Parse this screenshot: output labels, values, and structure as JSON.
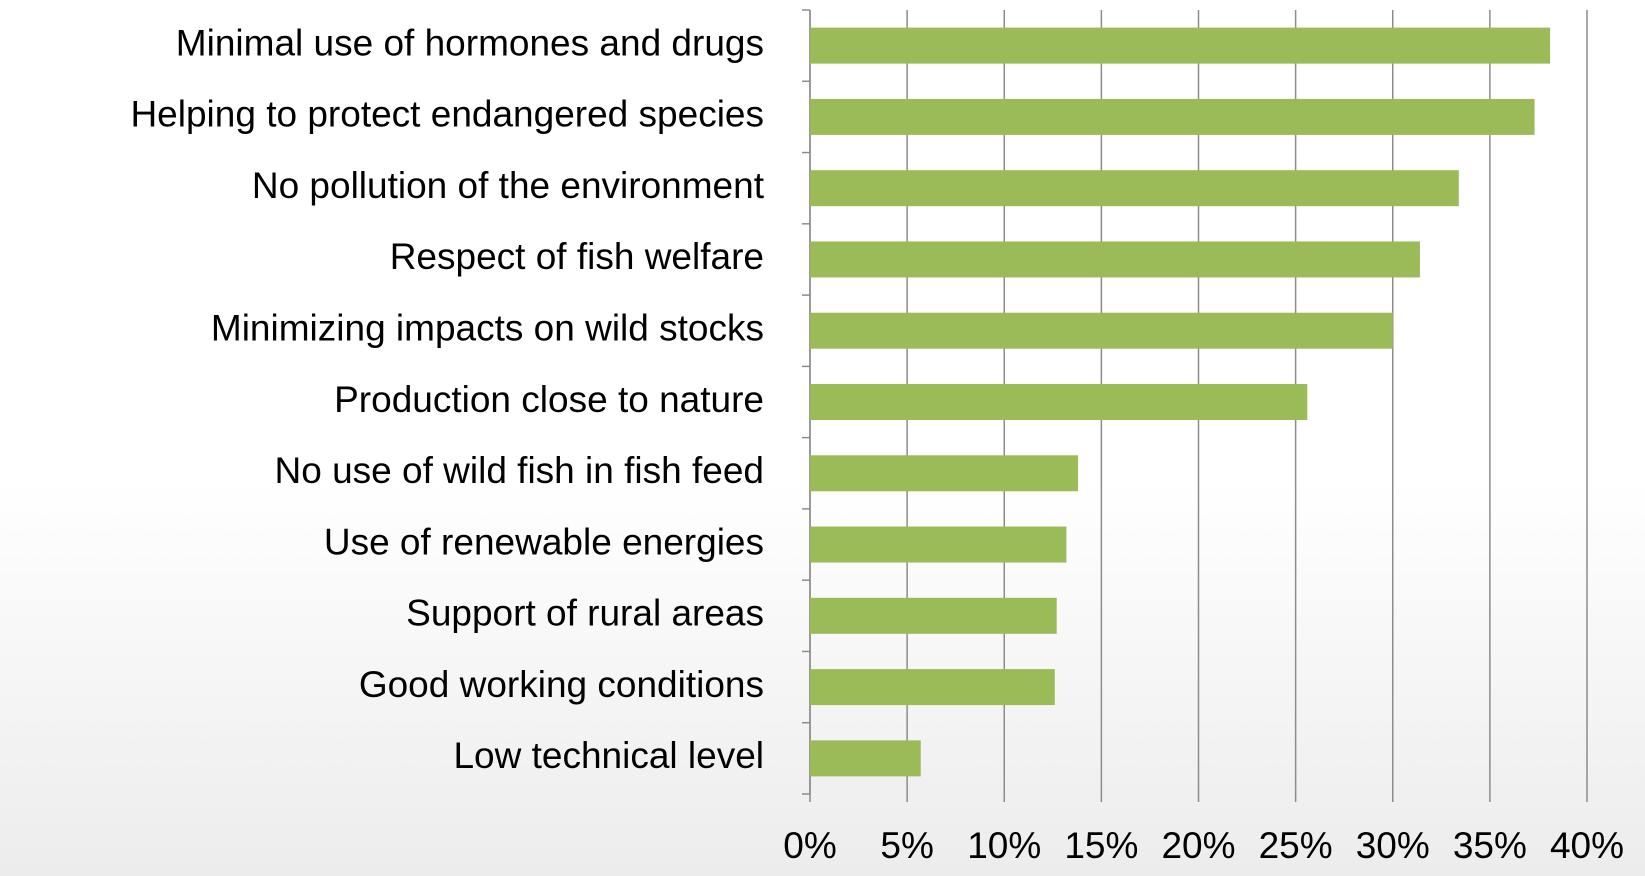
{
  "chart_data": {
    "type": "bar",
    "orientation": "horizontal",
    "categories": [
      "Minimal use of hormones and drugs",
      "Helping to protect endangered species",
      "No pollution of the environment",
      "Respect of fish welfare",
      "Minimizing impacts on wild stocks",
      "Production close to nature",
      "No use of wild fish in fish feed",
      "Use of renewable energies",
      "Support of rural areas",
      "Good working conditions",
      "Low technical level"
    ],
    "values": [
      38.1,
      37.3,
      33.4,
      31.4,
      30.0,
      25.6,
      13.8,
      13.2,
      12.7,
      12.6,
      5.7
    ],
    "color": "#9bbb59",
    "xlim": [
      0,
      40
    ],
    "xticks": [
      {
        "value": 0,
        "label": "0%"
      },
      {
        "value": 5,
        "label": "5%"
      },
      {
        "value": 10,
        "label": "10%"
      },
      {
        "value": 15,
        "label": "15%"
      },
      {
        "value": 20,
        "label": "20%"
      },
      {
        "value": 25,
        "label": "25%"
      },
      {
        "value": 30,
        "label": "30%"
      },
      {
        "value": 35,
        "label": "35%"
      },
      {
        "value": 40,
        "label": "40%"
      }
    ],
    "grid": true
  }
}
